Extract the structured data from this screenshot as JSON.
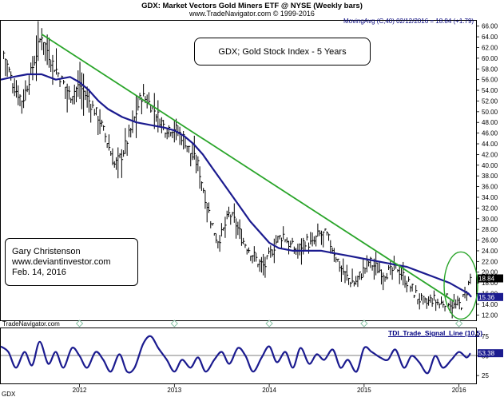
{
  "header": {
    "title": "GDX:  Market Vectors Gold Miners ETF @ NYSE  (Weekly bars)",
    "subtitle": "www.TradeNavigator.com © 1999-2016",
    "indicator_label": "MovingAvg (C,40)   02/12/2016 = 18.84 (+1.79)"
  },
  "annotations": {
    "title_box": "GDX;  Gold Stock Index - 5 Years",
    "author_lines": [
      "Gary Christenson",
      "www.deviantinvestor.com",
      "Feb. 14, 2016"
    ],
    "source": "TradeNavigator.com",
    "symbol": "GDX",
    "lower_panel_label": "TDI_Trade_Signal_Line (10,5)"
  },
  "colors": {
    "price": "#000000",
    "moving_average": "#1b1b8f",
    "trendline": "#2aa52a",
    "circle": "#2aa52a",
    "oscillator": "#1b1b8f",
    "price_tag": "#000000",
    "ma_tag": "#1b1b8f",
    "diamond_marker": "#7fbf9f"
  },
  "chart_data": [
    {
      "type": "line",
      "subtype": "weekly price bars (HLC) with 40-week moving average",
      "title": "GDX:  Market Vectors Gold Miners ETF @ NYSE  (Weekly bars)",
      "x_tick_labels": [
        "2012",
        "2013",
        "2014",
        "2015",
        "2016"
      ],
      "y_tick_labels": [
        "12.00",
        "14.00",
        "16.00",
        "18.00",
        "20.00",
        "22.00",
        "24.00",
        "26.00",
        "28.00",
        "30.00",
        "32.00",
        "34.00",
        "36.00",
        "38.00",
        "40.00",
        "42.00",
        "44.00",
        "46.00",
        "48.00",
        "50.00",
        "52.00",
        "54.00",
        "56.00",
        "58.00",
        "60.00",
        "62.00",
        "64.00",
        "66.00"
      ],
      "ylim": [
        11,
        67
      ],
      "xlim": [
        2011.17,
        2016.18
      ],
      "y_axis_position": "right",
      "grid": false,
      "last_price": "18.84",
      "ma_last_value": "15.36",
      "series": [
        {
          "name": "GDX",
          "style": "ohlc-bars",
          "x": [
            2011.2,
            2011.3,
            2011.4,
            2011.5,
            2011.6,
            2011.69,
            2011.78,
            2011.9,
            2012.0,
            2012.1,
            2012.2,
            2012.3,
            2012.37,
            2012.45,
            2012.55,
            2012.65,
            2012.72,
            2012.8,
            2012.9,
            2013.0,
            2013.1,
            2013.18,
            2013.25,
            2013.3,
            2013.38,
            2013.45,
            2013.5,
            2013.58,
            2013.65,
            2013.72,
            2013.8,
            2013.88,
            2013.95,
            2014.0,
            2014.08,
            2014.15,
            2014.22,
            2014.3,
            2014.38,
            2014.45,
            2014.52,
            2014.6,
            2014.68,
            2014.75,
            2014.82,
            2014.9,
            2014.98,
            2015.05,
            2015.12,
            2015.2,
            2015.28,
            2015.35,
            2015.42,
            2015.5,
            2015.58,
            2015.65,
            2015.72,
            2015.8,
            2015.88,
            2015.95,
            2016.02,
            2016.08,
            2016.12
          ],
          "values": [
            61,
            55,
            52,
            58,
            64.5,
            60,
            57,
            53,
            55,
            52,
            49,
            44,
            40,
            42,
            47,
            53,
            52,
            50,
            47,
            47,
            45,
            42,
            40,
            36,
            30,
            26,
            27,
            31,
            29,
            26,
            24,
            22,
            21,
            23,
            26,
            27,
            25,
            24,
            26,
            25,
            27,
            27,
            24,
            21,
            19,
            18,
            20,
            22,
            21,
            20,
            20,
            21,
            19,
            17,
            15,
            14,
            15,
            14,
            15,
            13.5,
            14,
            16.5,
            18.84
          ]
        },
        {
          "name": "MovingAvg (C,40)",
          "style": "line",
          "x": [
            2011.17,
            2011.3,
            2011.45,
            2011.6,
            2011.75,
            2011.9,
            2012.0,
            2012.1,
            2012.2,
            2012.3,
            2012.45,
            2012.6,
            2012.75,
            2012.9,
            2013.0,
            2013.1,
            2013.2,
            2013.3,
            2013.4,
            2013.5,
            2013.6,
            2013.7,
            2013.8,
            2013.9,
            2014.0,
            2014.1,
            2014.25,
            2014.4,
            2014.55,
            2014.7,
            2014.85,
            2015.0,
            2015.15,
            2015.3,
            2015.45,
            2015.6,
            2015.75,
            2015.9,
            2016.0,
            2016.1,
            2016.13
          ],
          "values": [
            56,
            56.5,
            57,
            57,
            56,
            56.5,
            55.5,
            54,
            52,
            50.5,
            49,
            48,
            47.5,
            47,
            46.5,
            45.5,
            44,
            42,
            39.5,
            37,
            34.5,
            32,
            29.5,
            27.5,
            25.5,
            24.5,
            24,
            24,
            24,
            23.5,
            23,
            22.5,
            22,
            21.5,
            21,
            20,
            19,
            18,
            17,
            16,
            15.36
          ]
        },
        {
          "name": "Trend line",
          "style": "line",
          "x": [
            2011.6,
            2015.95
          ],
          "values": [
            64.5,
            14.5
          ]
        }
      ],
      "annotations": [
        "GDX;  Gold Stock Index - 5 Years",
        "Gary Christenson",
        "www.deviantinvestor.com",
        "Feb. 14, 2016"
      ]
    },
    {
      "type": "line",
      "title": "TDI_Trade_Signal_Line (10,5)",
      "y_tick_labels": [
        "75",
        "50",
        "25"
      ],
      "ylim": [
        15,
        85
      ],
      "last_value": "53.38",
      "series": [
        {
          "name": "TDI_Trade_Signal_Line (10,5)",
          "x": [
            2011.17,
            2011.25,
            2011.33,
            2011.42,
            2011.5,
            2011.58,
            2011.67,
            2011.75,
            2011.83,
            2011.92,
            2012.0,
            2012.08,
            2012.17,
            2012.25,
            2012.33,
            2012.42,
            2012.5,
            2012.58,
            2012.67,
            2012.75,
            2012.83,
            2012.92,
            2013.0,
            2013.08,
            2013.17,
            2013.25,
            2013.33,
            2013.42,
            2013.5,
            2013.58,
            2013.67,
            2013.75,
            2013.83,
            2013.92,
            2014.0,
            2014.08,
            2014.17,
            2014.25,
            2014.33,
            2014.42,
            2014.5,
            2014.58,
            2014.67,
            2014.75,
            2014.83,
            2014.92,
            2015.0,
            2015.08,
            2015.17,
            2015.25,
            2015.33,
            2015.42,
            2015.5,
            2015.58,
            2015.67,
            2015.75,
            2015.83,
            2015.92,
            2016.0,
            2016.08,
            2016.12
          ],
          "values": [
            62,
            55,
            35,
            55,
            38,
            68,
            40,
            55,
            35,
            60,
            50,
            35,
            55,
            45,
            30,
            52,
            30,
            35,
            65,
            75,
            60,
            45,
            30,
            45,
            35,
            48,
            30,
            45,
            55,
            40,
            60,
            50,
            30,
            48,
            62,
            42,
            55,
            35,
            60,
            40,
            52,
            45,
            58,
            35,
            45,
            30,
            60,
            55,
            48,
            45,
            58,
            35,
            50,
            42,
            28,
            50,
            35,
            45,
            55,
            48,
            53.38
          ]
        }
      ]
    }
  ]
}
